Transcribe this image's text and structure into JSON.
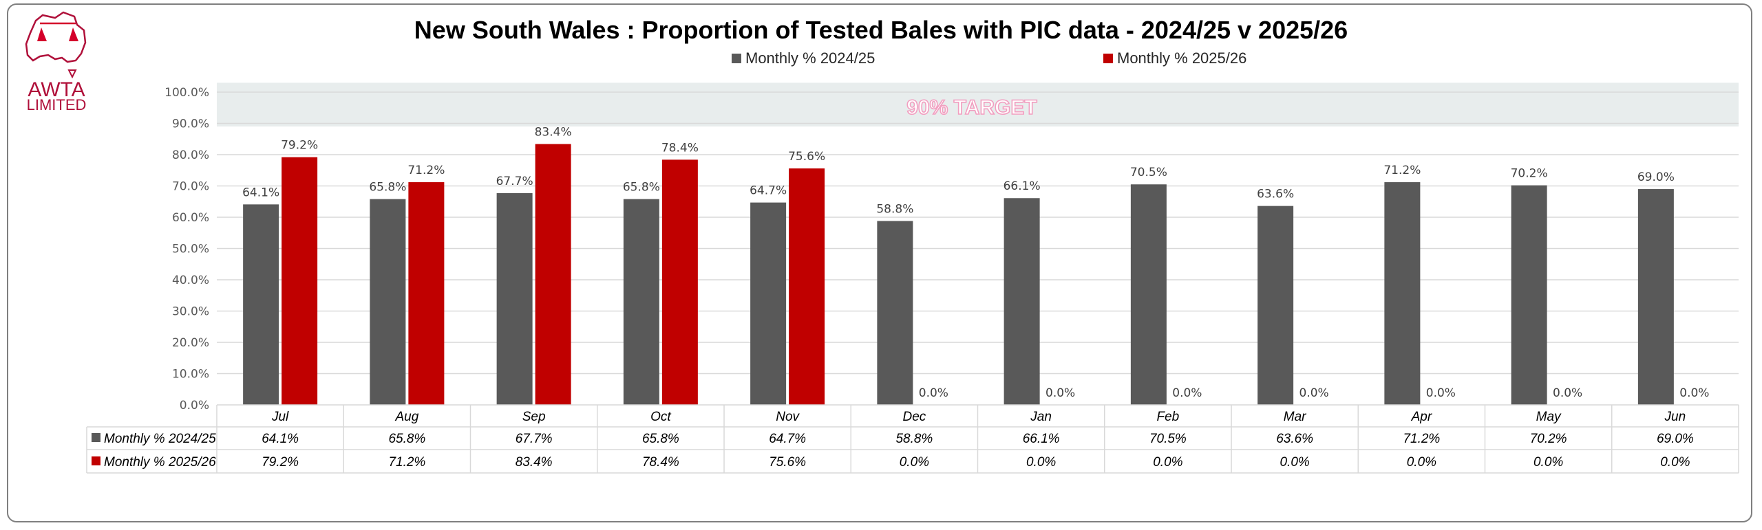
{
  "logo": {
    "line1": "AWTA",
    "line2": "LIMITED"
  },
  "chart_data": {
    "type": "bar",
    "title": "New South Wales : Proportion of Tested Bales with PIC data - 2024/25 v 2025/26",
    "categories": [
      "Jul",
      "Aug",
      "Sep",
      "Oct",
      "Nov",
      "Dec",
      "Jan",
      "Feb",
      "Mar",
      "Apr",
      "May",
      "Jun"
    ],
    "series": [
      {
        "name": "Monthly % 2024/25",
        "color": "#595959",
        "values": [
          64.1,
          65.8,
          67.7,
          65.8,
          64.7,
          58.8,
          66.1,
          70.5,
          63.6,
          71.2,
          70.2,
          69.0
        ]
      },
      {
        "name": "Monthly % 2025/26",
        "color": "#C00000",
        "values": [
          79.2,
          71.2,
          83.4,
          78.4,
          75.6,
          0.0,
          0.0,
          0.0,
          0.0,
          0.0,
          0.0,
          0.0
        ]
      }
    ],
    "ylim": [
      0,
      100
    ],
    "yticks": [
      "0.0%",
      "10.0%",
      "20.0%",
      "30.0%",
      "40.0%",
      "50.0%",
      "60.0%",
      "70.0%",
      "80.0%",
      "90.0%",
      "100.0%"
    ],
    "target_band": {
      "label": "90% TARGET",
      "from": 89,
      "to": 103,
      "color": "#E8EDED"
    },
    "legend": "top",
    "grid": true,
    "data_table": true,
    "xlabel": "",
    "ylabel": ""
  }
}
